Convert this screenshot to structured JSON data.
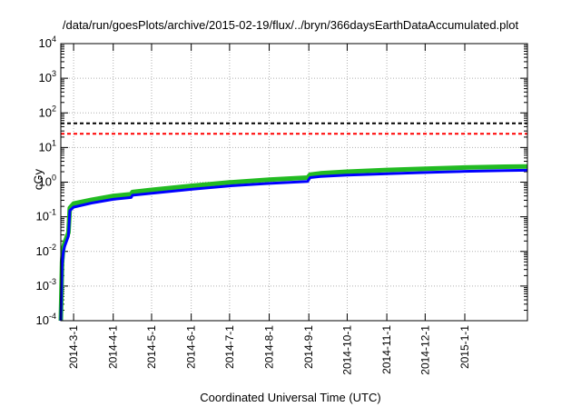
{
  "chart_data": {
    "type": "line",
    "title": "/data/run/goesPlots/archive/2015-02-19/flux/../bryn/366daysEarthDataAccumulated.plot",
    "xlabel": "Coordinated Universal Time (UTC)",
    "ylabel": "cGy",
    "yscale": "log",
    "ylim": [
      0.0001,
      10000
    ],
    "xlim": [
      "2014-02-19",
      "2015-02-19"
    ],
    "y_ticks": [
      {
        "value": 0.0001,
        "base": "10",
        "exp": "-4"
      },
      {
        "value": 0.001,
        "base": "10",
        "exp": "-3"
      },
      {
        "value": 0.01,
        "base": "10",
        "exp": "-2"
      },
      {
        "value": 0.1,
        "base": "10",
        "exp": "-1"
      },
      {
        "value": 1,
        "base": "10",
        "exp": "0"
      },
      {
        "value": 10,
        "base": "10",
        "exp": "1"
      },
      {
        "value": 100,
        "base": "10",
        "exp": "2"
      },
      {
        "value": 1000,
        "base": "10",
        "exp": "3"
      },
      {
        "value": 10000,
        "base": "10",
        "exp": "4"
      }
    ],
    "x_ticks": [
      {
        "date": "2014-03-01",
        "label": "2014-3-1"
      },
      {
        "date": "2014-04-01",
        "label": "2014-4-1"
      },
      {
        "date": "2014-05-01",
        "label": "2014-5-1"
      },
      {
        "date": "2014-06-01",
        "label": "2014-6-1"
      },
      {
        "date": "2014-07-01",
        "label": "2014-7-1"
      },
      {
        "date": "2014-08-01",
        "label": "2014-8-1"
      },
      {
        "date": "2014-09-01",
        "label": "2014-9-1"
      },
      {
        "date": "2014-10-01",
        "label": "2014-10-1"
      },
      {
        "date": "2014-11-01",
        "label": "2014-11-1"
      },
      {
        "date": "2014-12-01",
        "label": "2014-12-1"
      },
      {
        "date": "2015-01-01",
        "label": "2015-1-1"
      }
    ],
    "grid": true,
    "thresholds": [
      {
        "value": 50,
        "color": "#000000",
        "dash": true
      },
      {
        "value": 25,
        "color": "#ff0000",
        "dash": true
      }
    ],
    "series": [
      {
        "color": "#22bb22",
        "x": [
          "2014-02-19",
          "2014-02-20",
          "2014-02-21",
          "2014-02-22",
          "2014-02-25",
          "2014-02-26",
          "2014-03-01",
          "2014-03-15",
          "2014-04-01",
          "2014-04-15",
          "2014-04-16",
          "2014-05-01",
          "2014-06-01",
          "2014-07-01",
          "2014-08-01",
          "2014-08-31",
          "2014-09-02",
          "2014-09-10",
          "2014-10-01",
          "2014-11-01",
          "2014-12-01",
          "2015-01-01",
          "2015-02-01",
          "2015-02-19"
        ],
        "y": [
          0.0001,
          0.005,
          0.013,
          0.018,
          0.035,
          0.18,
          0.24,
          0.31,
          0.4,
          0.45,
          0.52,
          0.6,
          0.78,
          0.98,
          1.18,
          1.35,
          1.65,
          1.8,
          2.0,
          2.25,
          2.45,
          2.65,
          2.8,
          2.85
        ]
      },
      {
        "color": "#0000ff",
        "x": [
          "2014-02-19",
          "2014-02-20",
          "2014-02-21",
          "2014-02-22",
          "2014-02-25",
          "2014-02-26",
          "2014-03-01",
          "2014-03-15",
          "2014-04-01",
          "2014-04-15",
          "2014-04-16",
          "2014-05-01",
          "2014-06-01",
          "2014-07-01",
          "2014-08-01",
          "2014-08-31",
          "2014-09-02",
          "2014-09-10",
          "2014-10-01",
          "2014-11-01",
          "2014-12-01",
          "2015-01-01",
          "2015-02-01",
          "2015-02-19"
        ],
        "y": [
          0.0001,
          0.004,
          0.01,
          0.014,
          0.028,
          0.15,
          0.19,
          0.25,
          0.32,
          0.36,
          0.42,
          0.48,
          0.62,
          0.78,
          0.92,
          1.05,
          1.35,
          1.45,
          1.6,
          1.75,
          1.9,
          2.05,
          2.15,
          2.2
        ]
      }
    ]
  }
}
